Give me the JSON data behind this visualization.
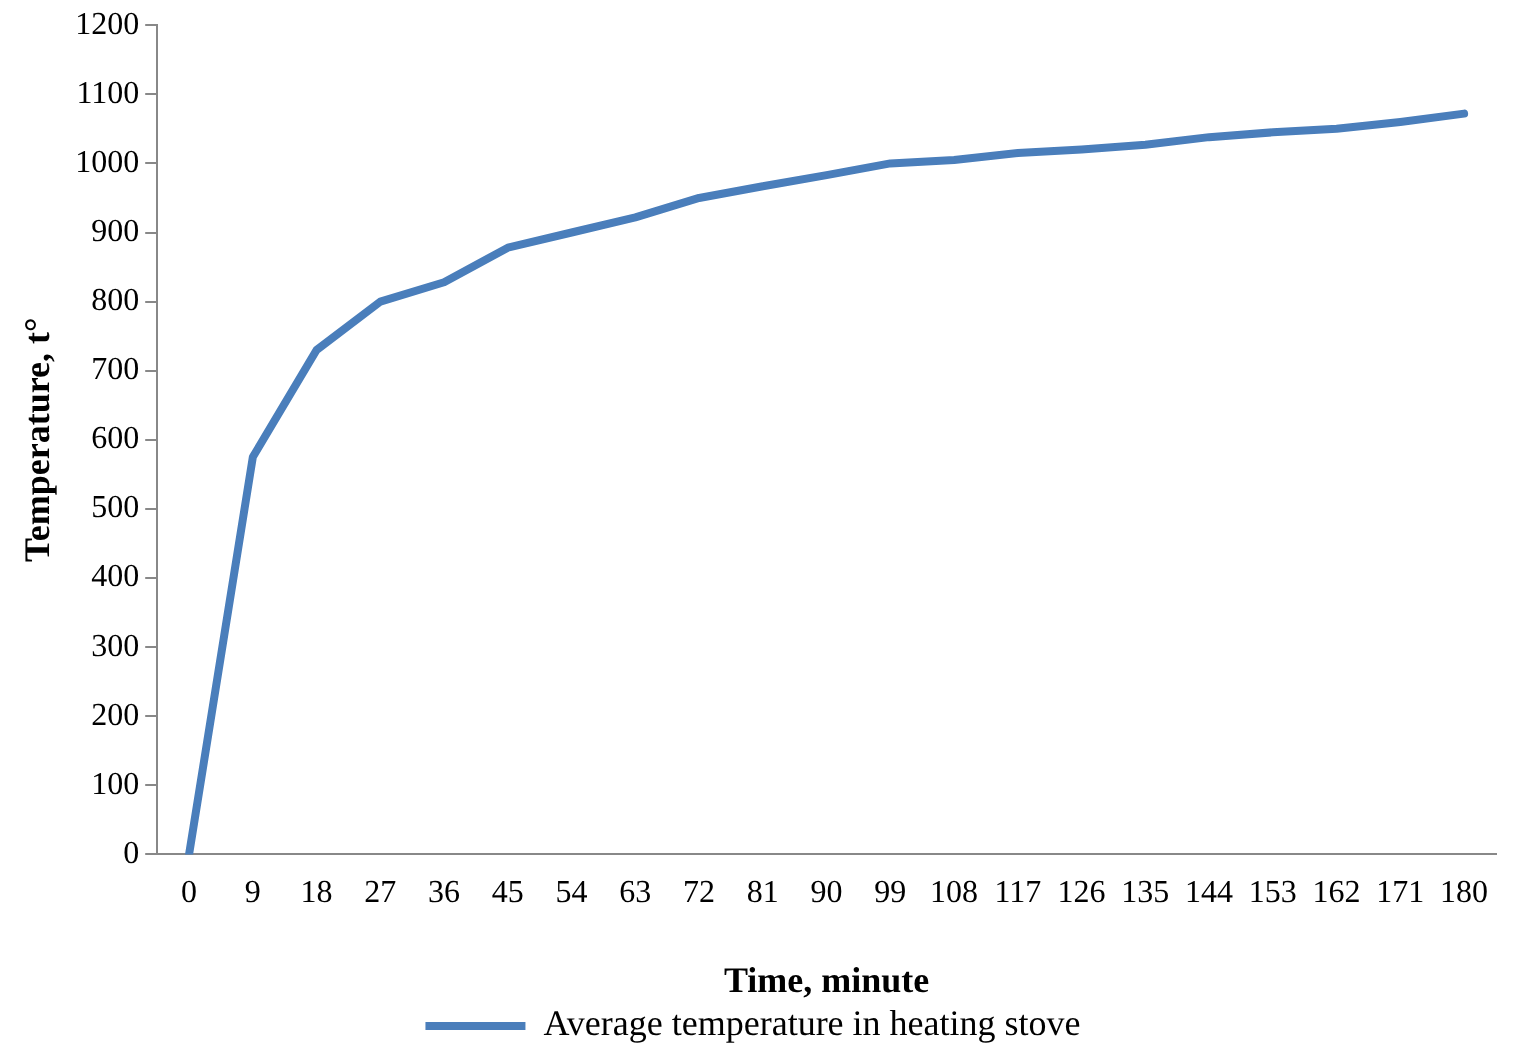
{
  "chart_data": {
    "type": "line",
    "xlabel": "Time, minute",
    "ylabel": "Temperature, t°",
    "categories": [
      "0",
      "9",
      "18",
      "27",
      "36",
      "45",
      "54",
      "63",
      "72",
      "81",
      "90",
      "99",
      "108",
      "117",
      "126",
      "135",
      "144",
      "153",
      "162",
      "171",
      "180"
    ],
    "series": [
      {
        "name": "Average temperature in heating stove",
        "color": "#4a7ebb",
        "values": [
          0,
          575,
          730,
          800,
          828,
          878,
          900,
          922,
          950,
          967,
          983,
          1000,
          1005,
          1015,
          1020,
          1027,
          1038,
          1045,
          1050,
          1060,
          1072
        ]
      }
    ],
    "ylim": [
      0,
      1200
    ],
    "yticks": [
      0,
      100,
      200,
      300,
      400,
      500,
      600,
      700,
      800,
      900,
      1000,
      1100,
      1200
    ],
    "grid": false,
    "legend": "bottom",
    "marker": "none",
    "line_style": "solid"
  }
}
